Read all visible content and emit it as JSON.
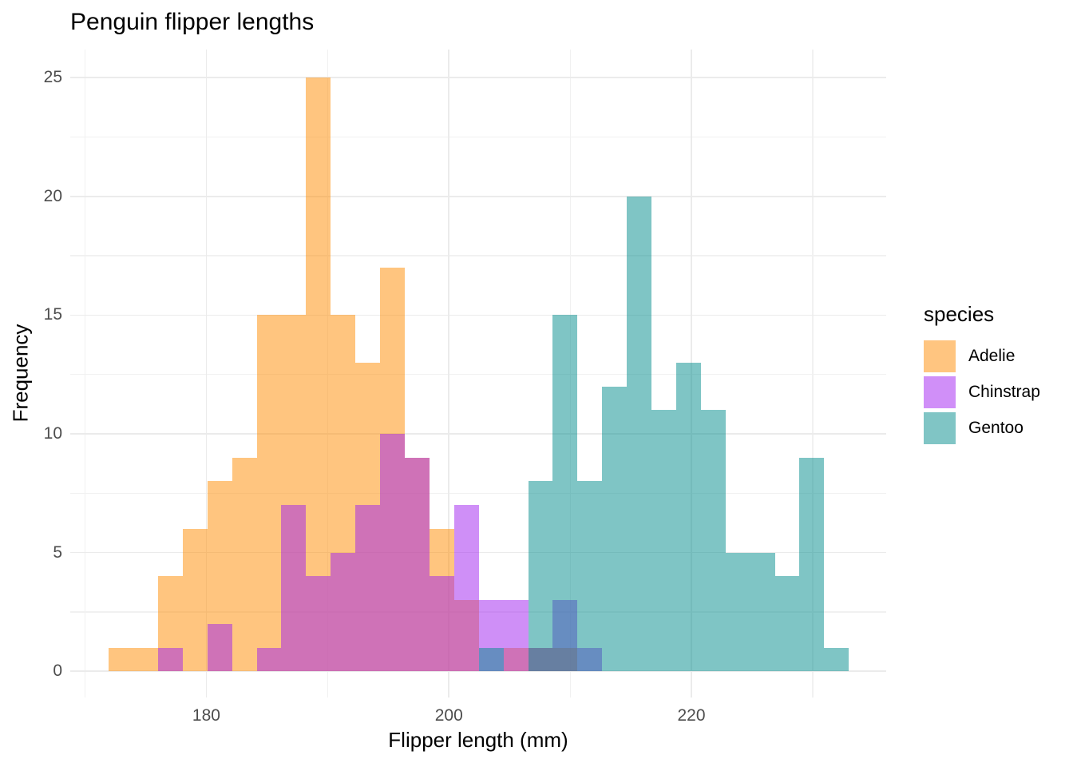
{
  "title": "Penguin flipper lengths",
  "axes": {
    "x_title": "Flipper length (mm)",
    "y_title": "Frequency",
    "x_tick_labels": [
      "180",
      "200",
      "220"
    ],
    "y_tick_labels": [
      "0",
      "5",
      "10",
      "15",
      "20",
      "25"
    ]
  },
  "legend": {
    "title": "species",
    "entries": [
      {
        "label": "Adelie",
        "color": "#FFC580"
      },
      {
        "label": "Chinstrap",
        "color": "#D08FF8"
      },
      {
        "label": "Gentoo",
        "color": "#80C5C5"
      }
    ]
  },
  "chart_data": {
    "type": "bar",
    "subtype": "overlaid-histogram",
    "title": "Penguin flipper lengths",
    "xlabel": "Flipper length (mm)",
    "ylabel": "Frequency",
    "grid": "on",
    "legend_position": "right",
    "background": "#ffffff",
    "major_grid_color": "#ebebeb",
    "minor_grid_color": "#f1f1f1",
    "bin_start": 171.95,
    "bin_width": 2.0345,
    "n_bins": 30,
    "xlim": [
      168.78,
      236.06
    ],
    "ylim": [
      -1.1,
      26.18
    ],
    "x_major_ticks": [
      180,
      200,
      220
    ],
    "x_minor_gridlines": [
      170,
      190,
      210,
      230
    ],
    "y_major_ticks": [
      0,
      5,
      10,
      15,
      20,
      25
    ],
    "y_minor_gridlines": [
      2.5,
      7.5,
      12.5,
      17.5,
      22.5
    ],
    "series": [
      {
        "name": "Adelie",
        "fill_rgba": [
          255,
          140,
          0,
          0.5
        ],
        "values": [
          1,
          1,
          4,
          6,
          8,
          9,
          15,
          15,
          25,
          15,
          13,
          17,
          9,
          6,
          3,
          0,
          1,
          1,
          1,
          0,
          0,
          0,
          0,
          0,
          0,
          0,
          0,
          0,
          0,
          0
        ]
      },
      {
        "name": "Chinstrap",
        "fill_rgba": [
          160,
          32,
          240,
          0.5
        ],
        "values": [
          0,
          0,
          1,
          0,
          2,
          0,
          1,
          7,
          4,
          5,
          7,
          10,
          9,
          4,
          7,
          3,
          3,
          1,
          3,
          1,
          0,
          0,
          0,
          0,
          0,
          0,
          0,
          0,
          0,
          0
        ]
      },
      {
        "name": "Gentoo",
        "fill_rgba": [
          0,
          139,
          139,
          0.5
        ],
        "values": [
          0,
          0,
          0,
          0,
          0,
          0,
          0,
          0,
          0,
          0,
          0,
          0,
          0,
          0,
          0,
          1,
          0,
          8,
          15,
          8,
          12,
          20,
          11,
          13,
          11,
          5,
          5,
          4,
          9,
          1
        ]
      }
    ]
  }
}
